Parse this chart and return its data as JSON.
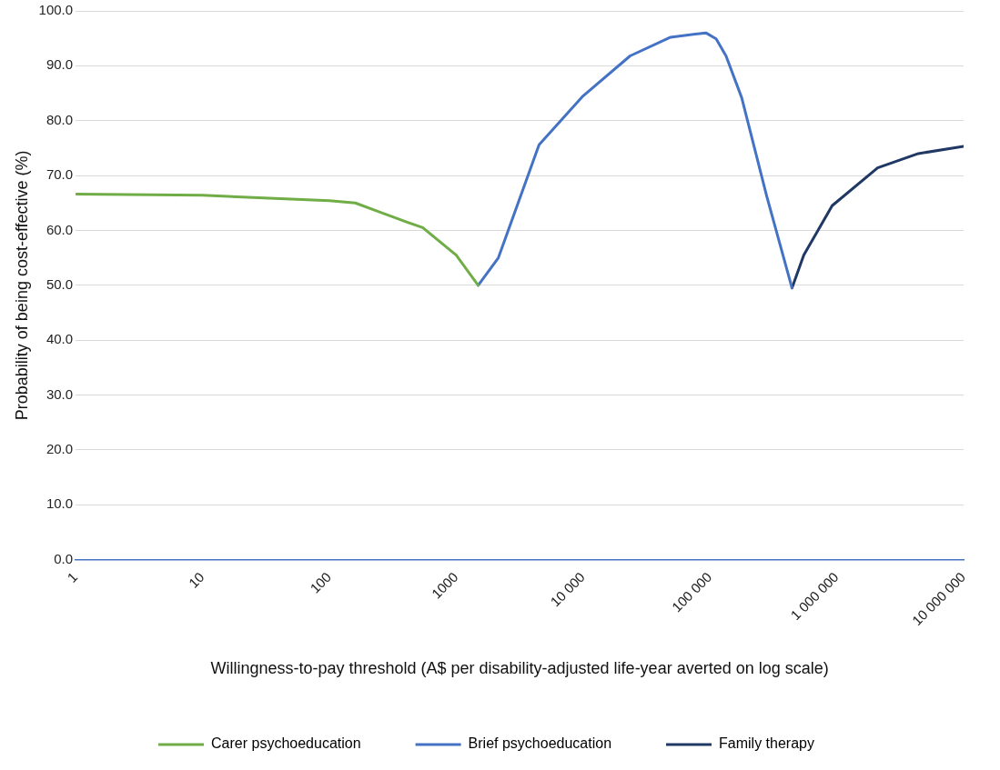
{
  "chart_data": {
    "type": "line",
    "xlabel": "Willingness-to-pay threshold (A$ per disability-adjusted life-year averted on log scale)",
    "ylabel": "Probability of being cost-effective (%)",
    "log": "x",
    "xlim": [
      1,
      10000000
    ],
    "xticks": [
      1,
      10,
      100,
      1000,
      {
        "value": 10000,
        "label": "10 000"
      },
      {
        "value": 100000,
        "label": "100 000"
      },
      {
        "value": 1000000,
        "label": "1 000 000"
      },
      {
        "value": 10000000,
        "label": "10 000 000"
      }
    ],
    "ylim": [
      0,
      100
    ],
    "yticks": [
      {
        "value": 0,
        "label": "0.0"
      },
      {
        "value": 10,
        "label": "10.0"
      },
      {
        "value": 20,
        "label": "20.0"
      },
      {
        "value": 30,
        "label": "30.0"
      },
      {
        "value": 40,
        "label": "40.0"
      },
      {
        "value": 50,
        "label": "50.0"
      },
      {
        "value": 60,
        "label": "60.0"
      },
      {
        "value": 70,
        "label": "70.0"
      },
      {
        "value": 80,
        "label": "80.0"
      },
      {
        "value": 90,
        "label": "90.0"
      },
      {
        "value": 100,
        "label": "100.0"
      }
    ],
    "grid": "y",
    "legend": "bottom",
    "marker": "none",
    "line_style": "solid",
    "series": [
      {
        "name": "Carer psychoeducation",
        "color": "#70ad47",
        "x": [
          1,
          10,
          100,
          160,
          240,
          410,
          545,
          1000,
          1490
        ],
        "values": [
          66.6,
          66.4,
          65.4,
          65.0,
          63.5,
          61.5,
          60.5,
          55.5,
          50.0
        ]
      },
      {
        "name": "Brief psychoeducation",
        "color": "#4472c4",
        "x": [
          1490,
          2150,
          4500,
          10000,
          23500,
          49000,
          93000,
          112000,
          134000,
          178000,
          280000,
          444000
        ],
        "values": [
          50.0,
          55.0,
          75.6,
          84.5,
          91.8,
          95.2,
          96.0,
          94.9,
          91.8,
          84.2,
          66.3,
          49.5
        ]
      },
      {
        "name": "Family therapy",
        "color": "#1f3864",
        "x": [
          444000,
          550000,
          920000,
          2100000,
          4400000,
          10000000
        ],
        "values": [
          49.5,
          55.5,
          64.5,
          71.4,
          74.0,
          75.3
        ]
      }
    ]
  }
}
